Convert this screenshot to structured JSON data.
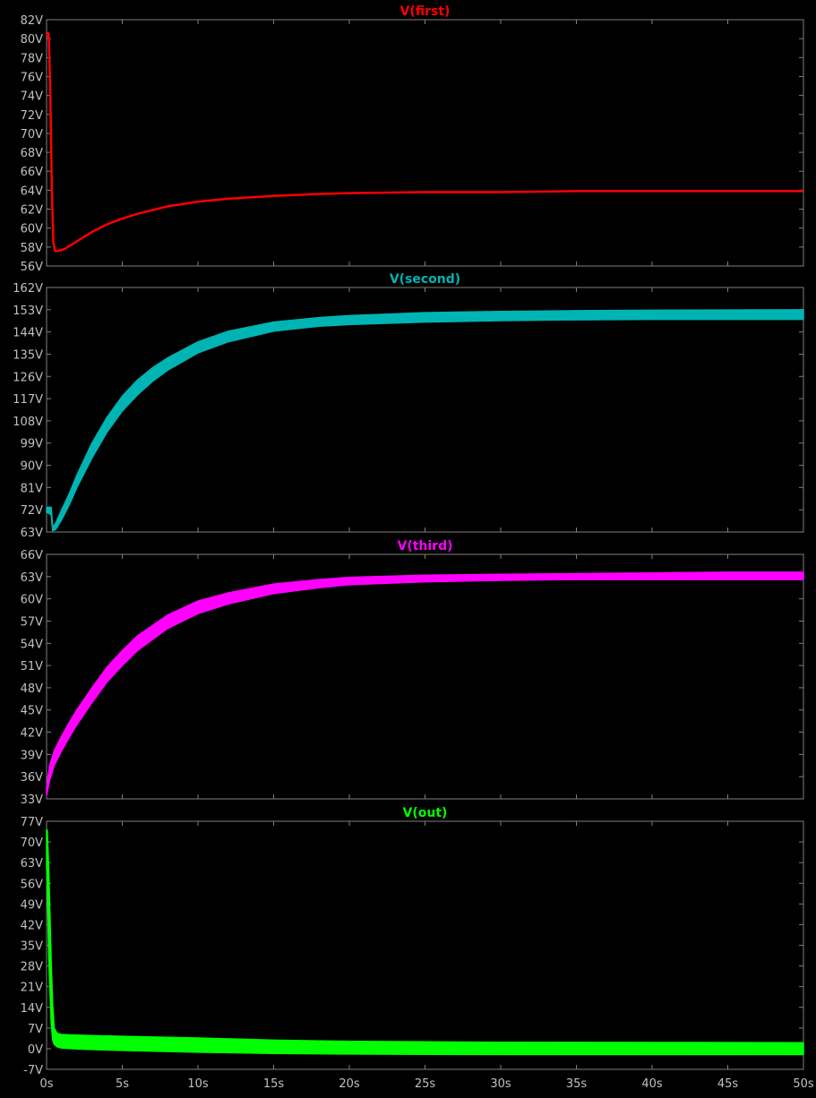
{
  "chart_data": [
    {
      "type": "line",
      "title": "V(first)",
      "color": "#ff0000",
      "band": false,
      "ylim": [
        56,
        82
      ],
      "yticks": [
        56,
        58,
        60,
        62,
        64,
        66,
        68,
        70,
        72,
        74,
        76,
        78,
        80,
        82
      ],
      "ytick_labels": [
        "56V",
        "58V",
        "60V",
        "62V",
        "64V",
        "66V",
        "68V",
        "70V",
        "72V",
        "74V",
        "76V",
        "78V",
        "80V",
        "82V"
      ],
      "xlim": [
        0,
        50
      ],
      "series": [
        {
          "x": [
            0,
            0.1,
            0.15,
            0.25,
            0.35,
            0.45,
            0.55,
            0.8,
            1.2,
            2,
            3,
            4,
            5,
            6,
            8,
            10,
            12,
            15,
            18,
            20,
            25,
            30,
            35,
            40,
            45,
            50
          ],
          "y": [
            80.2,
            80.6,
            80.4,
            74,
            64,
            58.5,
            57.6,
            57.6,
            57.8,
            58.6,
            59.6,
            60.4,
            61,
            61.5,
            62.3,
            62.8,
            63.1,
            63.4,
            63.6,
            63.7,
            63.8,
            63.8,
            63.9,
            63.9,
            63.9,
            63.9
          ]
        }
      ]
    },
    {
      "type": "area",
      "title": "V(second)",
      "color": "#00b4b4",
      "band": true,
      "ylim": [
        63,
        162
      ],
      "yticks": [
        63,
        72,
        81,
        90,
        99,
        108,
        117,
        126,
        135,
        144,
        153,
        162
      ],
      "ytick_labels": [
        "63V",
        "72V",
        "81V",
        "90V",
        "99V",
        "108V",
        "117V",
        "126V",
        "135V",
        "144V",
        "153V",
        "162V"
      ],
      "xlim": [
        0,
        50
      ],
      "series": [
        {
          "x": [
            0,
            0.3,
            0.4,
            0.6,
            1,
            1.5,
            2,
            3,
            4,
            5,
            6,
            7,
            8,
            10,
            12,
            15,
            18,
            20,
            25,
            30,
            35,
            40,
            45,
            50
          ],
          "y_low": [
            71,
            70,
            63.5,
            64,
            68,
            74,
            81,
            93,
            103.5,
            112,
            118.5,
            124,
            128.5,
            135.5,
            140,
            144.3,
            146.3,
            147,
            148,
            148.6,
            148.9,
            149.1,
            149.1,
            149.1
          ],
          "y_high": [
            73,
            73,
            65,
            66.5,
            72,
            78.5,
            86,
            99,
            109.5,
            118,
            124.5,
            129.5,
            133.5,
            140,
            144.3,
            148,
            149.8,
            150.6,
            151.8,
            152.3,
            152.6,
            152.8,
            152.9,
            153
          ]
        }
      ]
    },
    {
      "type": "area",
      "title": "V(third)",
      "color": "#ff00ff",
      "band": true,
      "ylim": [
        33,
        66
      ],
      "yticks": [
        33,
        36,
        39,
        42,
        45,
        48,
        51,
        54,
        57,
        60,
        63,
        66
      ],
      "ytick_labels": [
        "33V",
        "36V",
        "39V",
        "42V",
        "45V",
        "48V",
        "51V",
        "54V",
        "57V",
        "60V",
        "63V",
        "66V"
      ],
      "xlim": [
        0,
        50
      ],
      "series": [
        {
          "x": [
            0,
            0.2,
            0.5,
            1,
            1.5,
            2,
            3,
            4,
            5,
            6,
            8,
            10,
            12,
            15,
            18,
            20,
            25,
            30,
            35,
            40,
            45,
            50
          ],
          "y_low": [
            33.5,
            35.5,
            37.5,
            39.5,
            41.3,
            43,
            46,
            48.8,
            51,
            53,
            56,
            58,
            59.3,
            60.7,
            61.5,
            61.9,
            62.3,
            62.5,
            62.6,
            62.6,
            62.6,
            62.6
          ],
          "y_high": [
            34.5,
            37.5,
            39.5,
            41.5,
            43.3,
            45,
            48,
            50.8,
            53,
            55,
            57.8,
            59.7,
            60.8,
            62,
            62.6,
            62.9,
            63.2,
            63.3,
            63.4,
            63.5,
            63.6,
            63.6
          ]
        }
      ]
    },
    {
      "type": "area",
      "title": "V(out)",
      "color": "#00ff00",
      "band": true,
      "ylim": [
        -7,
        77
      ],
      "yticks": [
        -7,
        0,
        7,
        14,
        21,
        28,
        35,
        42,
        49,
        56,
        63,
        70,
        77
      ],
      "ytick_labels": [
        "-7V",
        "0V",
        "7V",
        "14V",
        "21V",
        "28V",
        "35V",
        "42V",
        "49V",
        "56V",
        "63V",
        "70V",
        "77V"
      ],
      "xlim": [
        0,
        50
      ],
      "xticks": [
        0,
        5,
        10,
        15,
        20,
        25,
        30,
        35,
        40,
        45,
        50
      ],
      "xtick_labels": [
        "0s",
        "5s",
        "10s",
        "15s",
        "20s",
        "25s",
        "30s",
        "35s",
        "40s",
        "45s",
        "50s"
      ],
      "series": [
        {
          "x": [
            0,
            0.05,
            0.15,
            0.3,
            0.4,
            0.5,
            0.7,
            1,
            2,
            3,
            5,
            10,
            15,
            20,
            25,
            30,
            40,
            50
          ],
          "y_low": [
            62,
            55,
            30,
            9,
            3,
            1.5,
            0.6,
            0.2,
            -0.1,
            -0.3,
            -0.6,
            -1.2,
            -1.6,
            -1.8,
            -1.9,
            -2,
            -2,
            -2
          ],
          "y_high": [
            74,
            74,
            60,
            30,
            15,
            7,
            5.2,
            4.8,
            4.6,
            4.4,
            4.2,
            3.6,
            2.9,
            2.5,
            2.3,
            2.2,
            2.1,
            2
          ]
        }
      ]
    }
  ]
}
